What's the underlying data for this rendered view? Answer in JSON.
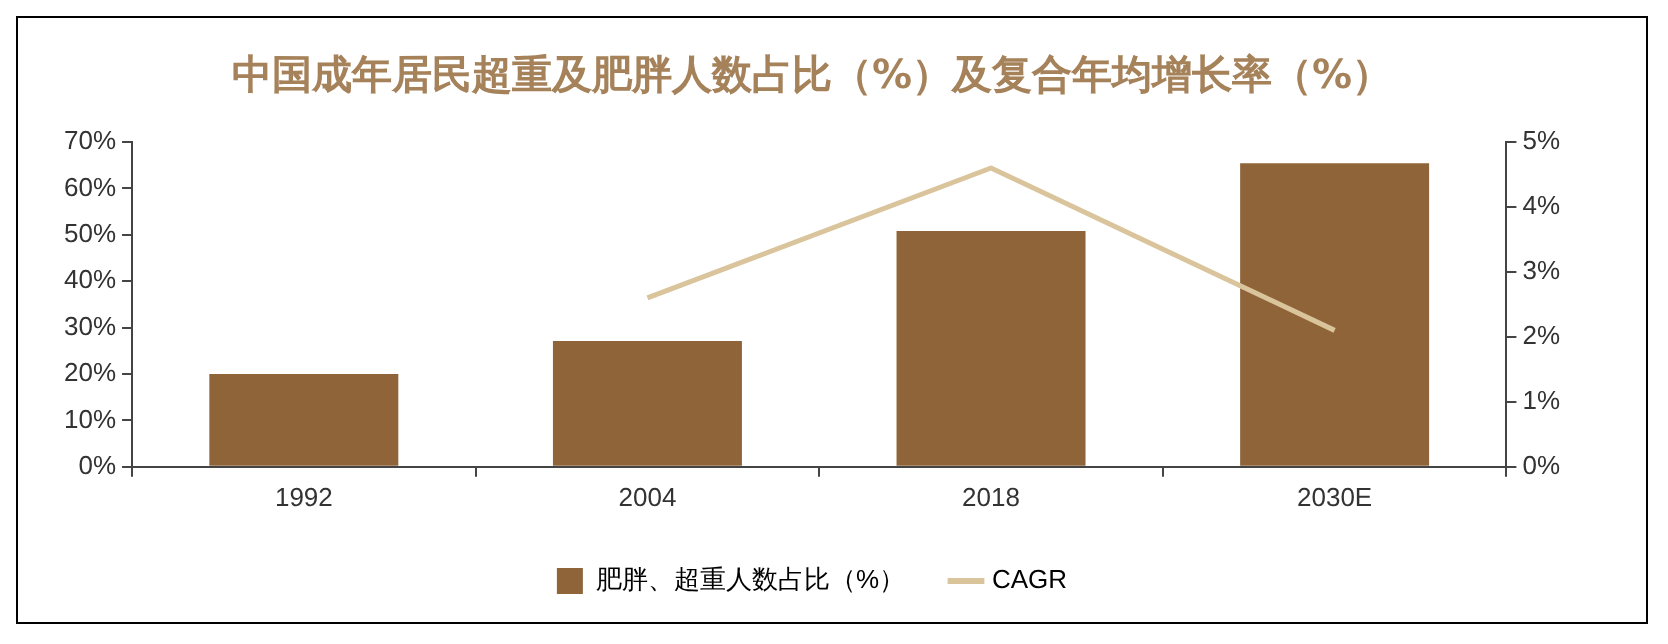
{
  "chart_data": {
    "type": "bar",
    "title": "中国成年居民超重及肥胖人数占比（%）及复合年均增长率（%）",
    "categories": [
      "1992",
      "2004",
      "2018",
      "2030E"
    ],
    "series": [
      {
        "name": "肥胖、超重人数占比（%）",
        "color": "#8f6438",
        "values": [
          20,
          27.1,
          50.8,
          65.4
        ]
      },
      {
        "name": "CAGR",
        "type": "line",
        "axis": "y2",
        "color": "#d9c49c",
        "values": [
          null,
          2.6,
          4.6,
          2.1
        ]
      }
    ],
    "ylim": [
      0,
      70
    ],
    "yticks": [
      {
        "value": 0,
        "label": "0%"
      },
      {
        "value": 10,
        "label": "10%"
      },
      {
        "value": 20,
        "label": "20%"
      },
      {
        "value": 30,
        "label": "30%"
      },
      {
        "value": 40,
        "label": "40%"
      },
      {
        "value": 50,
        "label": "50%"
      },
      {
        "value": 60,
        "label": "60%"
      },
      {
        "value": 70,
        "label": "70%"
      }
    ],
    "y2lim": [
      0,
      5
    ],
    "y2ticks": [
      {
        "value": 0,
        "label": "0%"
      },
      {
        "value": 1,
        "label": "1%"
      },
      {
        "value": 2,
        "label": "2%"
      },
      {
        "value": 3,
        "label": "3%"
      },
      {
        "value": 4,
        "label": "4%"
      },
      {
        "value": 5,
        "label": "5%"
      }
    ],
    "grid": false,
    "legend": "bottom",
    "marker": "none"
  }
}
